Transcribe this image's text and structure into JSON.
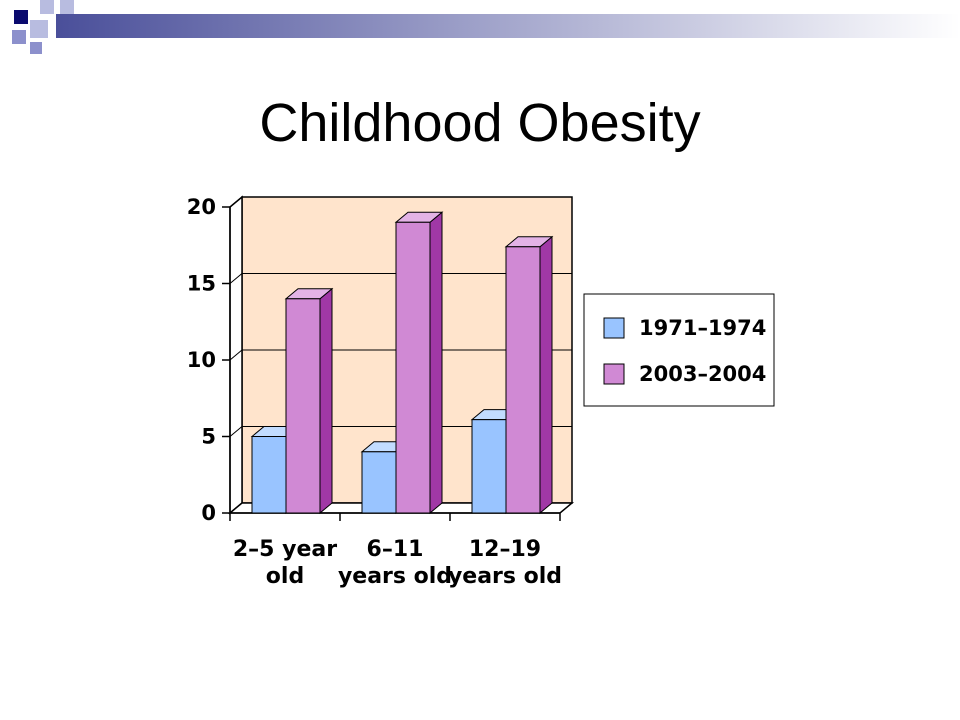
{
  "slide": {
    "title": "Childhood Obesity"
  },
  "chart_data": {
    "type": "bar",
    "title": "",
    "xlabel": "",
    "ylabel": "",
    "ylim": [
      0,
      20
    ],
    "yticks": [
      0,
      5,
      10,
      15,
      20
    ],
    "grid": true,
    "legend_position": "right",
    "categories": [
      [
        "2–5 year",
        "old"
      ],
      [
        "6–11",
        "years old"
      ],
      [
        "12–19",
        "years old"
      ]
    ],
    "series": [
      {
        "name": "1971–1974",
        "values": [
          5,
          4,
          6.1
        ],
        "color": "#99c4ff",
        "top_color": "#c2dcff",
        "side_color": "#5f8fd6"
      },
      {
        "name": "2003–2004",
        "values": [
          14,
          19,
          17.4
        ],
        "color": "#d089d4",
        "top_color": "#e3b3e6",
        "side_color": "#a038a6"
      }
    ],
    "plot_background": "#ffe4cc"
  }
}
